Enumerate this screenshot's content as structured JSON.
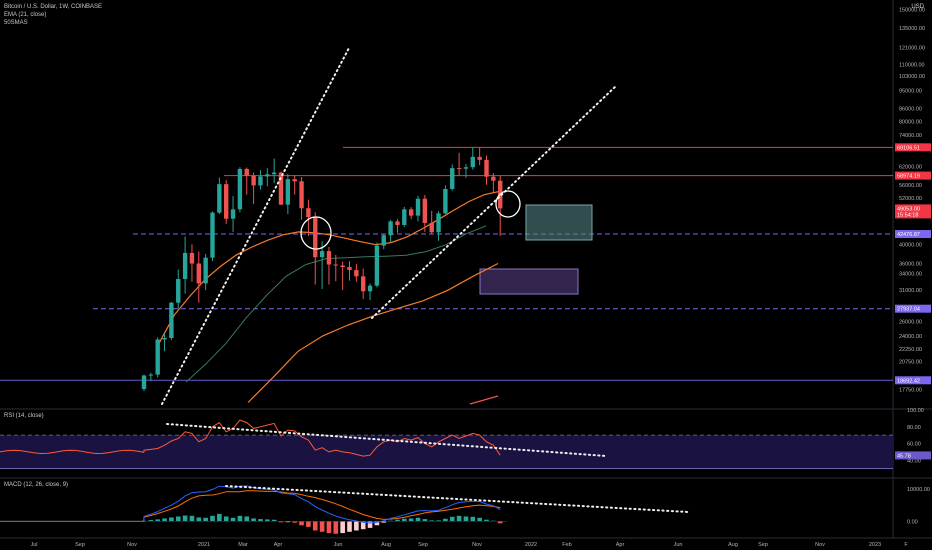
{
  "legend": {
    "symbol": "Bitcoin / U.S. Dollar, 1W, COINBASE",
    "ema": "EMA (21, close)",
    "sma": "50SMAS"
  },
  "currency": "USD",
  "rsi_legend": "RSI (14, close)",
  "macd_legend": "MACD (12, 26, close, 9)",
  "colors": {
    "background": "#000000",
    "up": "#26a69a",
    "down": "#ef5350",
    "ema": "#f57c2a",
    "sma50": "#3a7a5c",
    "red_line": "#f23645",
    "purple_line": "#6a5acd",
    "dashed_line": "#7b68ee",
    "rsi_line": "#ff5a36",
    "rsi_band": "#1a1240",
    "macd_line": "#2962ff",
    "signal_line": "#ff6d00"
  },
  "chart_data": [
    {
      "type": "candlestick",
      "title": "Bitcoin / U.S. Dollar, 1W, COINBASE",
      "scale": "log",
      "ylim": [
        16000,
        158000
      ],
      "y_ticks": [
        {
          "v": 150000,
          "label": "150000.00"
        },
        {
          "v": 135000,
          "label": "135000.00"
        },
        {
          "v": 121000,
          "label": "121000.00"
        },
        {
          "v": 110000,
          "label": "110000.00"
        },
        {
          "v": 103000,
          "label": "103000.00"
        },
        {
          "v": 95000,
          "label": "95000.00"
        },
        {
          "v": 86000,
          "label": "86000.00"
        },
        {
          "v": 80000,
          "label": "80000.00"
        },
        {
          "v": 74000,
          "label": "74000.00"
        },
        {
          "v": 62000,
          "label": "62000.00"
        },
        {
          "v": 56000,
          "label": "56000.00"
        },
        {
          "v": 52000,
          "label": "52000.00"
        },
        {
          "v": 40000,
          "label": "40000.00"
        },
        {
          "v": 36000,
          "label": "36000.00"
        },
        {
          "v": 34000,
          "label": "34000.00"
        },
        {
          "v": 31000,
          "label": "31000.00"
        },
        {
          "v": 26000,
          "label": "26000.00"
        },
        {
          "v": 24000,
          "label": "24000.00"
        },
        {
          "v": 22250,
          "label": "22250.00"
        },
        {
          "v": 20750,
          "label": "20750.00"
        },
        {
          "v": 17750,
          "label": "17750.00"
        }
      ],
      "price_tags": [
        {
          "v": 69106.51,
          "label": "69106.51",
          "color": "#f23645"
        },
        {
          "v": 58974.19,
          "label": "58974.19",
          "color": "#f23645"
        },
        {
          "v": 49053.0,
          "label": "49053.00",
          "color": "#f23645",
          "sub": "15:54:18"
        },
        {
          "v": 42476.87,
          "label": "42476.87",
          "color": "#7b68ee"
        },
        {
          "v": 27937.04,
          "label": "27937.04",
          "color": "#7b68ee"
        },
        {
          "v": 18692.42,
          "label": "18692.42",
          "color": "#7b68ee"
        }
      ],
      "x_labels": [
        "Jul",
        "Sep",
        "Nov",
        "2021",
        "Mar",
        "Apr",
        "Jun",
        "Aug",
        "Sep",
        "Nov",
        "2022",
        "Feb",
        "Apr",
        "Jun",
        "Aug",
        "Sep",
        "Nov",
        "2023",
        "F"
      ],
      "candles": [
        {
          "o": 17800,
          "h": 19300,
          "l": 17600,
          "c": 19200
        },
        {
          "o": 19200,
          "h": 19500,
          "l": 18600,
          "c": 19300
        },
        {
          "o": 19300,
          "h": 23800,
          "l": 19000,
          "c": 23500
        },
        {
          "o": 23500,
          "h": 24300,
          "l": 22000,
          "c": 23700
        },
        {
          "o": 23700,
          "h": 29000,
          "l": 23400,
          "c": 28900
        },
        {
          "o": 28900,
          "h": 34800,
          "l": 28000,
          "c": 33000
        },
        {
          "o": 33000,
          "h": 41900,
          "l": 30400,
          "c": 38200
        },
        {
          "o": 38200,
          "h": 40100,
          "l": 32500,
          "c": 36000
        },
        {
          "o": 36000,
          "h": 38500,
          "l": 28900,
          "c": 32200
        },
        {
          "o": 32200,
          "h": 38000,
          "l": 31000,
          "c": 37200
        },
        {
          "o": 37200,
          "h": 48200,
          "l": 36500,
          "c": 47900
        },
        {
          "o": 47900,
          "h": 58300,
          "l": 47500,
          "c": 56200
        },
        {
          "o": 56200,
          "h": 57500,
          "l": 45000,
          "c": 46300
        },
        {
          "o": 46300,
          "h": 52600,
          "l": 43000,
          "c": 48800
        },
        {
          "o": 48800,
          "h": 61800,
          "l": 48000,
          "c": 61200
        },
        {
          "o": 61200,
          "h": 61700,
          "l": 53000,
          "c": 58900
        },
        {
          "o": 58900,
          "h": 60000,
          "l": 50300,
          "c": 55800
        },
        {
          "o": 55800,
          "h": 60800,
          "l": 54500,
          "c": 58700
        },
        {
          "o": 58700,
          "h": 61500,
          "l": 55500,
          "c": 59400
        },
        {
          "o": 59400,
          "h": 64900,
          "l": 56500,
          "c": 60000
        },
        {
          "o": 60000,
          "h": 60300,
          "l": 50000,
          "c": 50100
        },
        {
          "o": 50100,
          "h": 59500,
          "l": 47500,
          "c": 57800
        },
        {
          "o": 57800,
          "h": 59000,
          "l": 53000,
          "c": 57100
        },
        {
          "o": 57100,
          "h": 58500,
          "l": 46000,
          "c": 49100
        },
        {
          "o": 49100,
          "h": 51500,
          "l": 42000,
          "c": 46700
        },
        {
          "o": 46700,
          "h": 48000,
          "l": 32000,
          "c": 37300
        },
        {
          "o": 37300,
          "h": 40800,
          "l": 31200,
          "c": 38600
        },
        {
          "o": 38600,
          "h": 39500,
          "l": 32000,
          "c": 35800
        },
        {
          "o": 35800,
          "h": 37800,
          "l": 32600,
          "c": 35600
        },
        {
          "o": 35600,
          "h": 36400,
          "l": 31000,
          "c": 35300
        },
        {
          "o": 35300,
          "h": 36500,
          "l": 32700,
          "c": 34700
        },
        {
          "o": 34700,
          "h": 35900,
          "l": 32500,
          "c": 33500
        },
        {
          "o": 33500,
          "h": 35000,
          "l": 29500,
          "c": 30800
        },
        {
          "o": 30800,
          "h": 32200,
          "l": 29300,
          "c": 31800
        },
        {
          "o": 31800,
          "h": 40500,
          "l": 31500,
          "c": 39800
        },
        {
          "o": 39800,
          "h": 42600,
          "l": 39000,
          "c": 42200
        },
        {
          "o": 42200,
          "h": 46000,
          "l": 40600,
          "c": 45600
        },
        {
          "o": 45600,
          "h": 46200,
          "l": 42800,
          "c": 44700
        },
        {
          "o": 44700,
          "h": 49500,
          "l": 44200,
          "c": 48800
        },
        {
          "o": 48800,
          "h": 49400,
          "l": 46200,
          "c": 47100
        },
        {
          "o": 47100,
          "h": 52600,
          "l": 45600,
          "c": 51800
        },
        {
          "o": 51800,
          "h": 52900,
          "l": 43000,
          "c": 45200
        },
        {
          "o": 45200,
          "h": 48400,
          "l": 42600,
          "c": 42900
        },
        {
          "o": 42900,
          "h": 48300,
          "l": 40900,
          "c": 47700
        },
        {
          "o": 47700,
          "h": 55800,
          "l": 47500,
          "c": 54700
        },
        {
          "o": 54700,
          "h": 62800,
          "l": 54200,
          "c": 61500
        },
        {
          "o": 61500,
          "h": 67000,
          "l": 59000,
          "c": 61300
        },
        {
          "o": 61300,
          "h": 62900,
          "l": 58200,
          "c": 61800
        },
        {
          "o": 61800,
          "h": 69000,
          "l": 61000,
          "c": 65500
        },
        {
          "o": 65500,
          "h": 69100,
          "l": 62500,
          "c": 64400
        },
        {
          "o": 64400,
          "h": 66000,
          "l": 56000,
          "c": 58600
        },
        {
          "o": 58600,
          "h": 59800,
          "l": 53600,
          "c": 57300
        },
        {
          "o": 57300,
          "h": 59000,
          "l": 42000,
          "c": 49053
        }
      ],
      "ema21": [
        23000,
        27000,
        30000,
        33000,
        35500,
        37800,
        39500,
        41000,
        42300,
        43000,
        42800,
        42300,
        41500,
        40700,
        40000,
        40500,
        41800,
        43800,
        46000,
        48500,
        51000,
        53000,
        54000
      ],
      "sma50": [
        18500,
        20500,
        23000,
        26500,
        30000,
        33500,
        35800,
        37000,
        37200,
        37400,
        37500,
        37700,
        38500,
        40000,
        42500,
        44500
      ],
      "long_avg": [
        16500,
        19000,
        22000,
        24000,
        25500,
        26800,
        28000,
        29200,
        31000,
        33500,
        36000
      ]
    },
    {
      "type": "line",
      "title": "RSI (14, close)",
      "ylim": [
        20,
        100
      ],
      "y_ticks": [
        {
          "v": 100,
          "label": "100.00"
        },
        {
          "v": 80,
          "label": "80.00"
        },
        {
          "v": 60,
          "label": "60.00"
        },
        {
          "v": 40,
          "label": "40.00"
        }
      ],
      "band": [
        30,
        70
      ],
      "current": {
        "v": 45.78,
        "label": "45.78"
      },
      "values": [
        52,
        53,
        54,
        58,
        63,
        66,
        74,
        72,
        62,
        66,
        80,
        85,
        74,
        78,
        88,
        85,
        78,
        80,
        82,
        84,
        69,
        76,
        75,
        68,
        64,
        52,
        55,
        50,
        52,
        50,
        49,
        47,
        45,
        46,
        56,
        62,
        64,
        62,
        66,
        64,
        67,
        60,
        56,
        62,
        66,
        70,
        66,
        69,
        72,
        70,
        62,
        58,
        46
      ]
    },
    {
      "type": "bar",
      "title": "MACD (12, 26, close, 9)",
      "ylim": [
        -4800,
        13000
      ],
      "y_ticks": [
        {
          "v": 10000,
          "label": "10000.00"
        },
        {
          "v": 0,
          "label": "0.00"
        }
      ],
      "histogram": [
        200,
        400,
        600,
        900,
        1200,
        1500,
        1800,
        1700,
        1200,
        1100,
        1700,
        2300,
        1500,
        1100,
        1700,
        1500,
        900,
        700,
        600,
        500,
        -300,
        -200,
        -400,
        -1200,
        -1700,
        -2800,
        -3200,
        -3600,
        -3800,
        -3600,
        -3200,
        -2800,
        -2400,
        -2000,
        -1200,
        -400,
        200,
        500,
        800,
        900,
        1100,
        700,
        300,
        300,
        800,
        1400,
        1700,
        1500,
        1400,
        1100,
        500,
        200,
        -600
      ],
      "macd": [
        1500,
        2200,
        3000,
        4000,
        5000,
        6200,
        7800,
        8800,
        9000,
        9100,
        9800,
        10800,
        10600,
        10200,
        10800,
        10900,
        10300,
        10000,
        9800,
        9700,
        8700,
        8500,
        8200,
        7000,
        6000,
        4500,
        3500,
        2500,
        1600,
        1000,
        500,
        100,
        -300,
        -500,
        -300,
        200,
        900,
        1400,
        2000,
        2600,
        3200,
        3300,
        3200,
        3400,
        4200,
        5100,
        5800,
        6000,
        6200,
        6100,
        5300,
        4800,
        3600
      ],
      "signal": [
        1300,
        1800,
        2400,
        3100,
        3800,
        4700,
        6000,
        7100,
        7800,
        8000,
        8100,
        8500,
        9100,
        9100,
        9100,
        9400,
        9400,
        9300,
        9200,
        9200,
        9000,
        8700,
        8600,
        8200,
        7700,
        7300,
        6700,
        6100,
        5400,
        4600,
        3700,
        2900,
        2100,
        1500,
        900,
        600,
        700,
        900,
        1200,
        1700,
        2100,
        2600,
        2900,
        3100,
        3400,
        3700,
        4100,
        4500,
        4800,
        5000,
        4800,
        4600,
        4200
      ]
    }
  ]
}
